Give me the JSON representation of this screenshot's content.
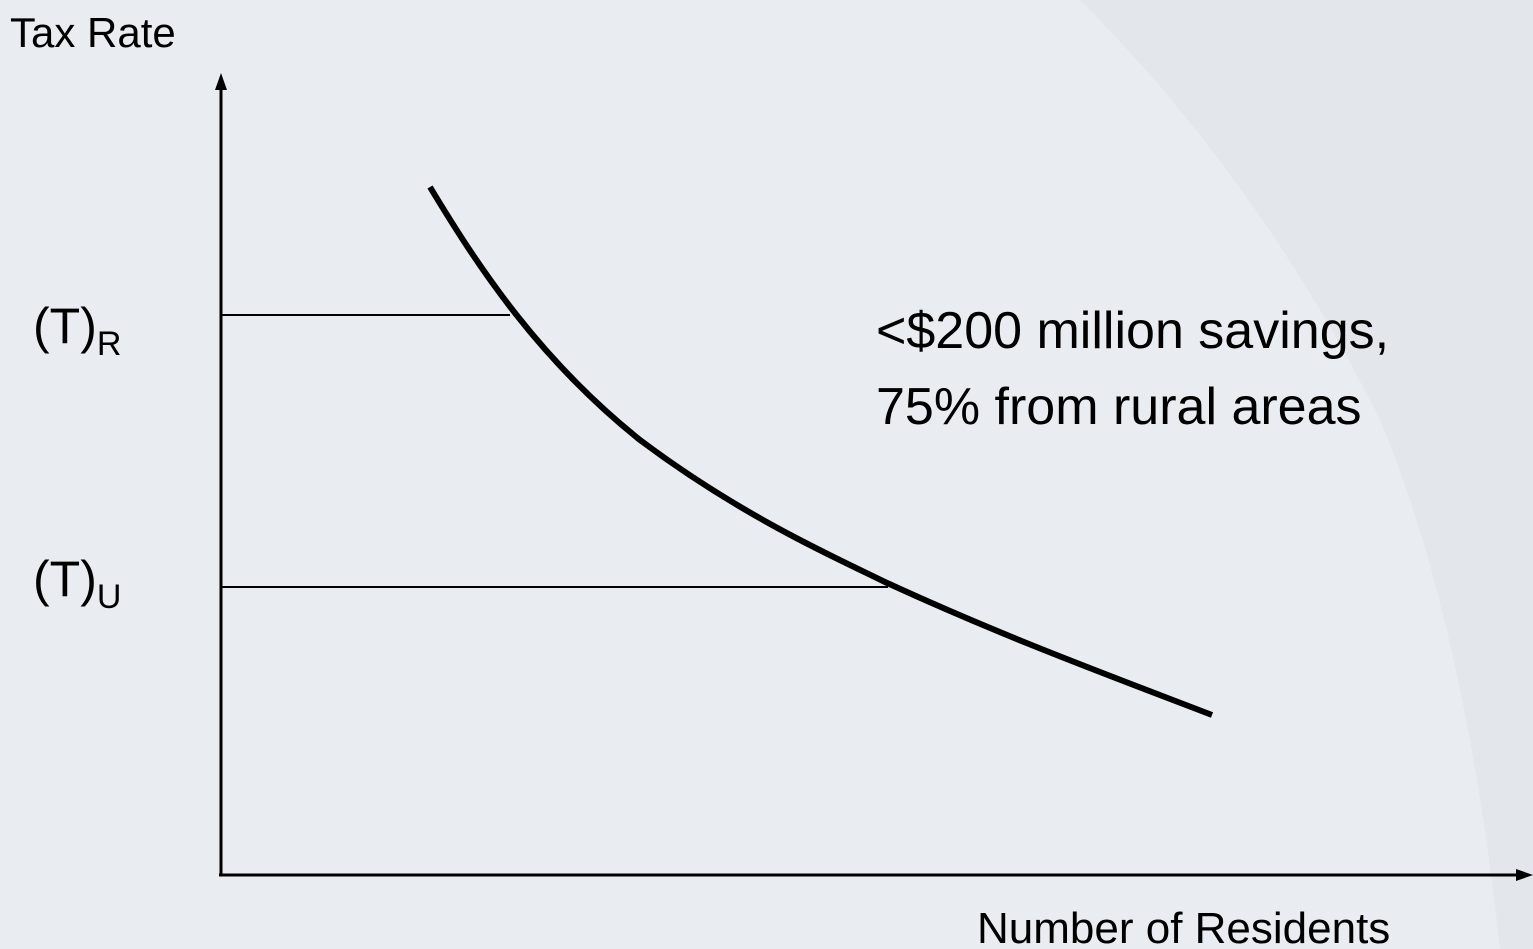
{
  "axes": {
    "y_label": "Tax Rate",
    "x_label": "Number of Residents"
  },
  "levels": [
    {
      "base": "(T)",
      "subscript": "R"
    },
    {
      "base": "(T)",
      "subscript": "U"
    }
  ],
  "annotation": [
    "<$200 million savings,",
    "75% from rural areas"
  ]
}
